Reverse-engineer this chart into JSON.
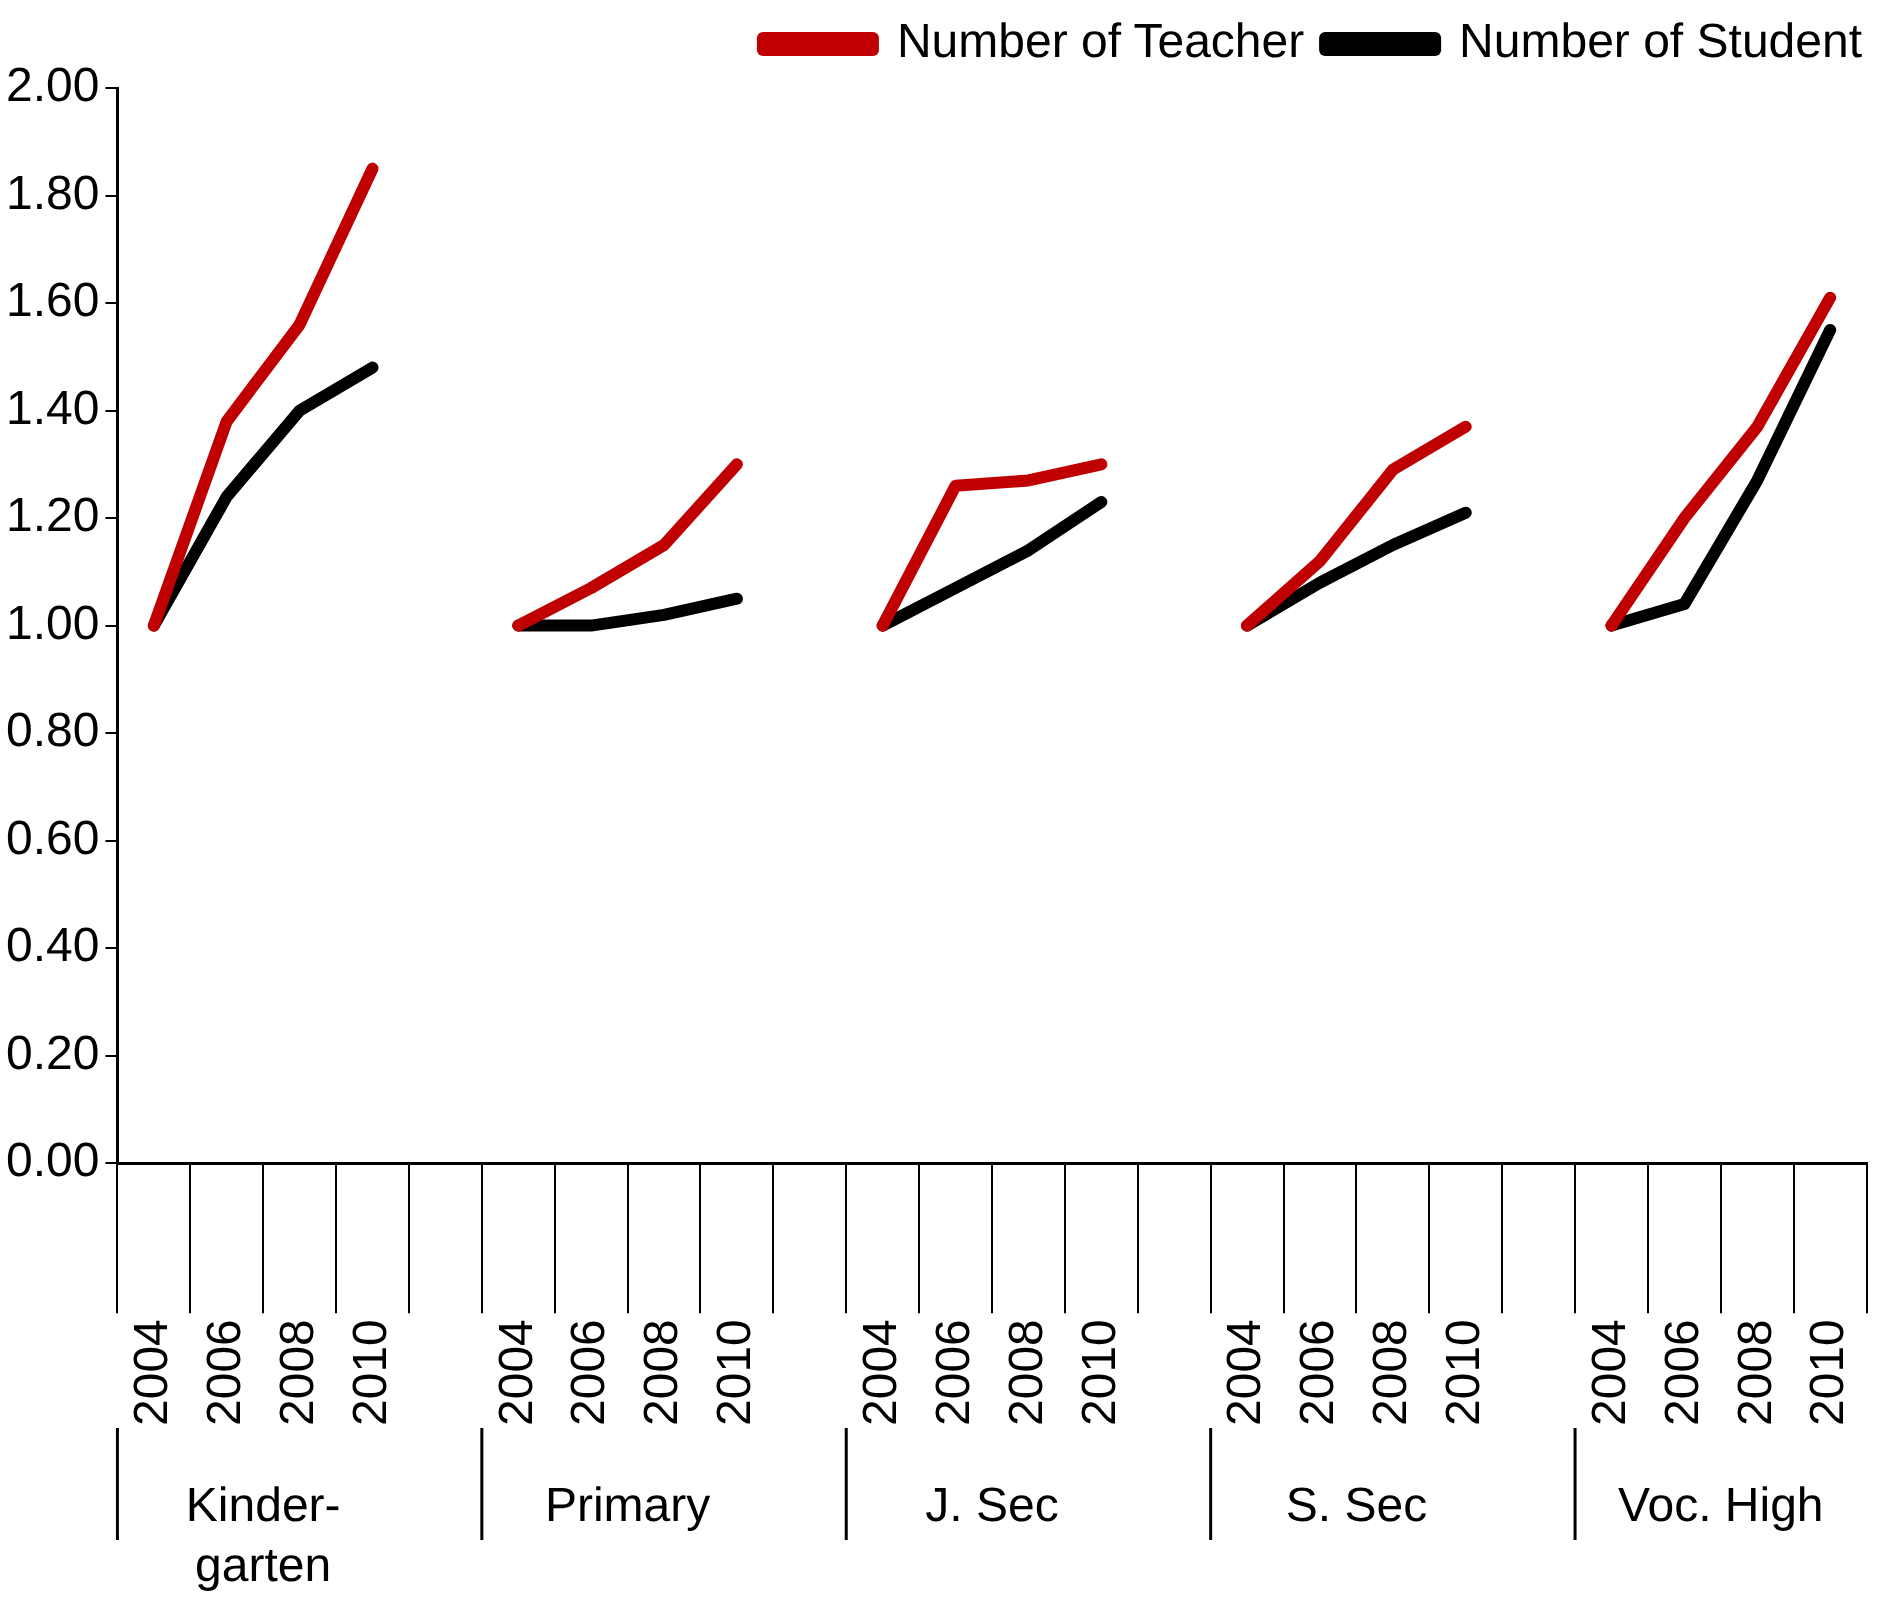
{
  "chart_data": {
    "type": "line",
    "categories": [
      "2004",
      "2006",
      "2008",
      "2010",
      null,
      "2004",
      "2006",
      "2008",
      "2010",
      null,
      "2004",
      "2006",
      "2008",
      "2010",
      null,
      "2004",
      "2006",
      "2008",
      "2010",
      null,
      "2004",
      "2006",
      "2008",
      "2010"
    ],
    "series": [
      {
        "name": "Number of Teacher",
        "color": "#c00000",
        "values": [
          1.0,
          1.38,
          1.56,
          1.85,
          null,
          1.0,
          1.07,
          1.15,
          1.3,
          null,
          1.0,
          1.26,
          1.27,
          1.3,
          null,
          1.0,
          1.12,
          1.29,
          1.37,
          null,
          1.0,
          1.2,
          1.37,
          1.61
        ]
      },
      {
        "name": "Number of Student",
        "color": "#000000",
        "values": [
          1.0,
          1.24,
          1.4,
          1.48,
          null,
          1.0,
          1.0,
          1.02,
          1.05,
          null,
          1.0,
          1.07,
          1.14,
          1.23,
          null,
          1.0,
          1.08,
          1.15,
          1.21,
          null,
          1.0,
          1.04,
          1.27,
          1.55
        ]
      }
    ],
    "ylim": [
      0,
      2
    ],
    "yticks": [
      {
        "value": 0,
        "label": "0.00"
      },
      {
        "value": 0.2,
        "label": "0.20"
      },
      {
        "value": 0.4,
        "label": "0.40"
      },
      {
        "value": 0.6,
        "label": "0.60"
      },
      {
        "value": 0.8,
        "label": "0.80"
      },
      {
        "value": 1,
        "label": "1.00"
      },
      {
        "value": 1.2,
        "label": "1.20"
      },
      {
        "value": 1.4,
        "label": "1.40"
      },
      {
        "value": 1.6,
        "label": "1.60"
      },
      {
        "value": 1.8,
        "label": "1.80"
      },
      {
        "value": 2,
        "label": "2.00"
      }
    ],
    "annotations": [
      "Kinder-garten",
      "Primary",
      "J. Sec",
      "S. Sec",
      "Voc. High"
    ],
    "legend": "top right",
    "grid": false,
    "marker": "none",
    "line_style": "solid"
  }
}
